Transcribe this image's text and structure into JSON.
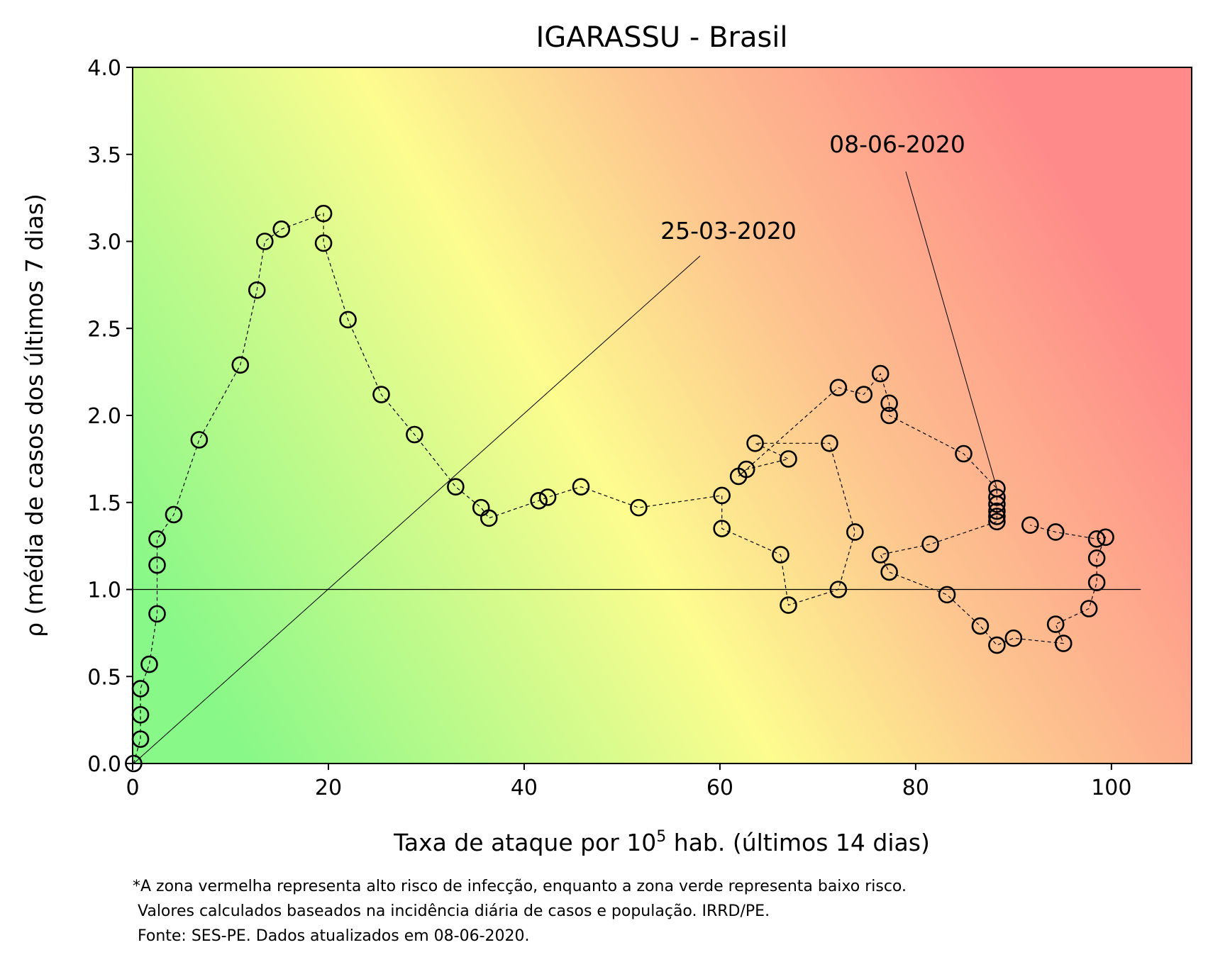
{
  "chart_data": {
    "type": "scatter",
    "title": "IGARASSU - Brasil",
    "xlabel_prefix": "Taxa de ataque por 10",
    "xlabel_sup": "5",
    "xlabel_suffix": " hab. (últimos 14 dias)",
    "ylabel": "ρ (média de casos dos últimos 7 dias)",
    "xlim": [
      0,
      108.2
    ],
    "ylim": [
      0,
      4.0
    ],
    "x_ticks": [
      0,
      20,
      40,
      60,
      80,
      100
    ],
    "y_ticks": [
      "0.0",
      "0.5",
      "1.0",
      "1.5",
      "2.0",
      "2.5",
      "3.0",
      "3.5",
      "4.0"
    ],
    "grid": false,
    "background": "risk gradient: green (low x, low y) through yellow and orange to red (high x, high y)",
    "colors": {
      "green": "#88f888",
      "yellow": "#fdfc8f",
      "orange": "#fdc58f",
      "red": "#fe8a8a",
      "markers": "#000000"
    },
    "reference_line": {
      "y": 1.0,
      "x_end": 103
    },
    "series": [
      {
        "style": "open circles joined by dashed line",
        "points": [
          [
            0.1,
            0.0
          ],
          [
            0.8,
            0.14
          ],
          [
            0.8,
            0.28
          ],
          [
            0.8,
            0.43
          ],
          [
            1.7,
            0.57
          ],
          [
            2.5,
            0.86
          ],
          [
            2.5,
            1.14
          ],
          [
            2.5,
            1.29
          ],
          [
            4.2,
            1.43
          ],
          [
            6.8,
            1.86
          ],
          [
            11.0,
            2.29
          ],
          [
            12.7,
            2.72
          ],
          [
            13.5,
            3.0
          ],
          [
            15.2,
            3.07
          ],
          [
            19.5,
            3.16
          ],
          [
            19.5,
            2.99
          ],
          [
            22.0,
            2.55
          ],
          [
            25.4,
            2.12
          ],
          [
            28.8,
            1.89
          ],
          [
            33.0,
            1.59
          ],
          [
            35.6,
            1.47
          ],
          [
            36.4,
            1.41
          ],
          [
            41.5,
            1.51
          ],
          [
            42.4,
            1.53
          ],
          [
            45.8,
            1.59
          ],
          [
            51.7,
            1.47
          ],
          [
            60.2,
            1.54
          ],
          [
            60.2,
            1.35
          ],
          [
            66.2,
            1.2
          ],
          [
            67.0,
            0.91
          ],
          [
            72.1,
            1.0
          ],
          [
            73.8,
            1.33
          ],
          [
            71.2,
            1.84
          ],
          [
            63.6,
            1.84
          ],
          [
            67.0,
            1.75
          ],
          [
            62.7,
            1.69
          ],
          [
            61.9,
            1.65
          ],
          [
            72.1,
            2.16
          ],
          [
            74.7,
            2.12
          ],
          [
            76.4,
            2.24
          ],
          [
            77.3,
            2.07
          ],
          [
            77.3,
            2.0
          ],
          [
            84.9,
            1.78
          ],
          [
            88.3,
            1.58
          ],
          [
            88.3,
            1.53
          ],
          [
            88.3,
            1.49
          ],
          [
            88.3,
            1.45
          ],
          [
            88.3,
            1.42
          ],
          [
            88.3,
            1.39
          ],
          [
            81.5,
            1.26
          ],
          [
            76.4,
            1.2
          ],
          [
            77.3,
            1.1
          ],
          [
            83.2,
            0.97
          ],
          [
            86.6,
            0.79
          ],
          [
            88.3,
            0.68
          ],
          [
            90.0,
            0.72
          ],
          [
            95.1,
            0.69
          ],
          [
            94.3,
            0.8
          ],
          [
            97.7,
            0.89
          ],
          [
            98.5,
            1.04
          ],
          [
            98.5,
            1.18
          ],
          [
            99.4,
            1.3
          ],
          [
            98.5,
            1.29
          ],
          [
            94.3,
            1.33
          ],
          [
            91.7,
            1.37
          ]
        ]
      }
    ],
    "annotations": [
      {
        "text": "25-03-2020",
        "point": [
          0.1,
          0.0
        ],
        "label_position": "upper middle"
      },
      {
        "text": "08-06-2020",
        "point": [
          88.3,
          1.58
        ],
        "label_position": "upper right"
      }
    ],
    "footnote": [
      "*A zona vermelha representa alto risco de infecção, enquanto a zona verde representa baixo risco.",
      " Valores calculados baseados na incidência diária de casos e população. IRRD/PE.",
      " Fonte: SES-PE. Dados atualizados em 08-06-2020."
    ]
  }
}
